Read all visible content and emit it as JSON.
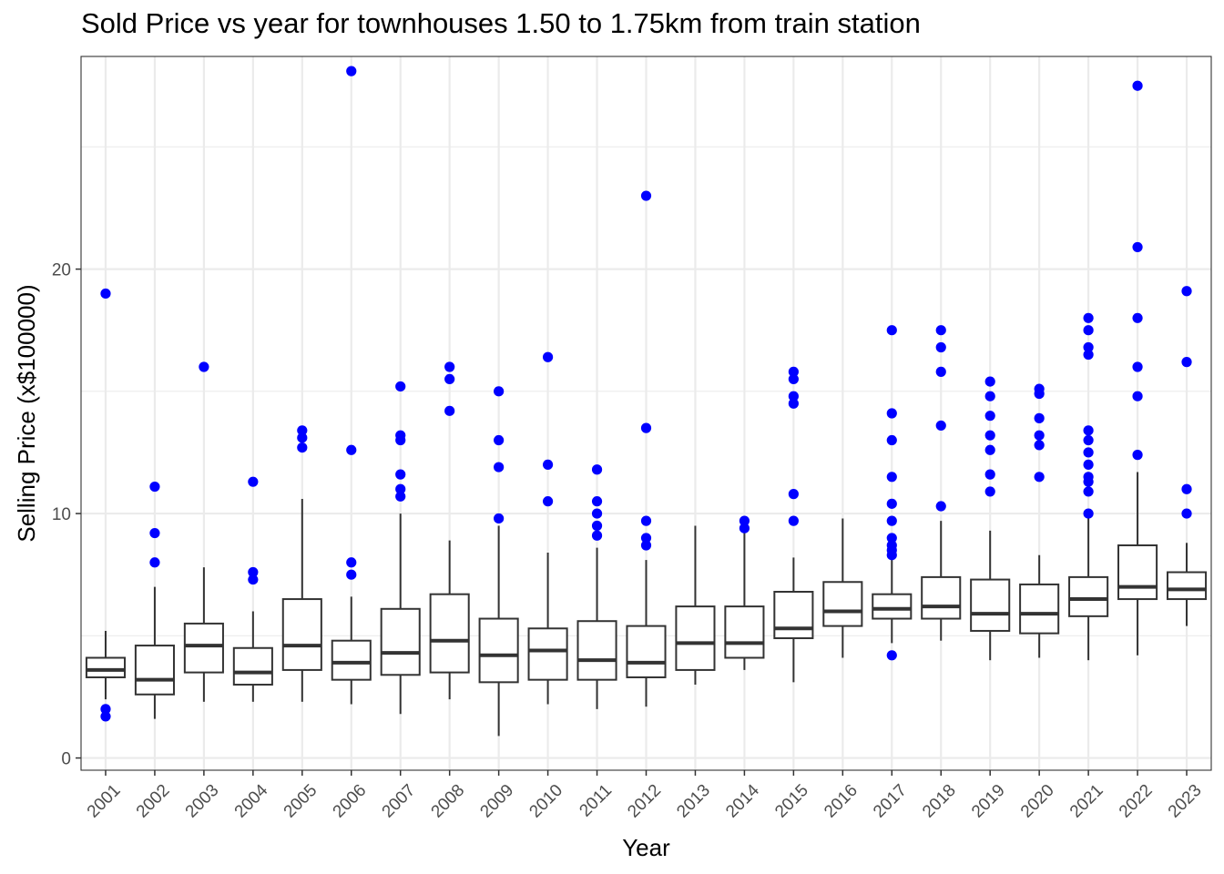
{
  "chart_data": {
    "type": "boxplot",
    "title": "Sold Price vs year for townhouses 1.50 to 1.75km from train station",
    "xlabel": "Year",
    "ylabel": "Selling Price (x$100000)",
    "ylim": [
      -0.5,
      28.7
    ],
    "y_ticks": [
      0,
      10,
      20
    ],
    "grid": true,
    "outlier_color": "#0000ff",
    "box_color": "#333333",
    "categories": [
      "2001",
      "2002",
      "2003",
      "2004",
      "2005",
      "2006",
      "2007",
      "2008",
      "2009",
      "2010",
      "2011",
      "2012",
      "2013",
      "2014",
      "2015",
      "2016",
      "2017",
      "2018",
      "2019",
      "2020",
      "2021",
      "2022",
      "2023"
    ],
    "boxes": [
      {
        "year": "2001",
        "lower": 2.4,
        "q1": 3.3,
        "median": 3.6,
        "q3": 4.1,
        "upper": 5.2,
        "outliers": [
          19.0,
          2.0,
          1.7
        ]
      },
      {
        "year": "2002",
        "lower": 1.6,
        "q1": 2.6,
        "median": 3.2,
        "q3": 4.6,
        "upper": 7.0,
        "outliers": [
          11.1,
          9.2,
          8.0
        ]
      },
      {
        "year": "2003",
        "lower": 2.3,
        "q1": 3.5,
        "median": 4.6,
        "q3": 5.5,
        "upper": 7.8,
        "outliers": [
          16.0
        ]
      },
      {
        "year": "2004",
        "lower": 2.3,
        "q1": 3.0,
        "median": 3.5,
        "q3": 4.5,
        "upper": 6.0,
        "outliers": [
          11.3,
          7.6,
          7.3
        ]
      },
      {
        "year": "2005",
        "lower": 2.3,
        "q1": 3.6,
        "median": 4.6,
        "q3": 6.5,
        "upper": 10.6,
        "outliers": [
          13.4,
          13.1,
          12.7
        ]
      },
      {
        "year": "2006",
        "lower": 2.2,
        "q1": 3.2,
        "median": 3.9,
        "q3": 4.8,
        "upper": 6.6,
        "outliers": [
          28.1,
          12.6,
          8.0,
          7.5
        ]
      },
      {
        "year": "2007",
        "lower": 1.8,
        "q1": 3.4,
        "median": 4.3,
        "q3": 6.1,
        "upper": 10.0,
        "outliers": [
          15.2,
          13.2,
          13.0,
          11.6,
          11.0,
          10.7
        ]
      },
      {
        "year": "2008",
        "lower": 2.4,
        "q1": 3.5,
        "median": 4.8,
        "q3": 6.7,
        "upper": 8.9,
        "outliers": [
          16.0,
          15.5,
          14.2
        ]
      },
      {
        "year": "2009",
        "lower": 0.9,
        "q1": 3.1,
        "median": 4.2,
        "q3": 5.7,
        "upper": 9.5,
        "outliers": [
          15.0,
          13.0,
          11.9,
          9.8
        ]
      },
      {
        "year": "2010",
        "lower": 2.2,
        "q1": 3.2,
        "median": 4.4,
        "q3": 5.3,
        "upper": 8.4,
        "outliers": [
          16.4,
          12.0,
          10.5
        ]
      },
      {
        "year": "2011",
        "lower": 2.0,
        "q1": 3.2,
        "median": 4.0,
        "q3": 5.6,
        "upper": 8.6,
        "outliers": [
          11.8,
          10.5,
          10.0,
          9.5,
          9.1
        ]
      },
      {
        "year": "2012",
        "lower": 2.1,
        "q1": 3.3,
        "median": 3.9,
        "q3": 5.4,
        "upper": 8.1,
        "outliers": [
          23.0,
          13.5,
          9.7,
          9.0,
          8.7
        ]
      },
      {
        "year": "2013",
        "lower": 3.0,
        "q1": 3.6,
        "median": 4.7,
        "q3": 6.2,
        "upper": 9.5,
        "outliers": []
      },
      {
        "year": "2014",
        "lower": 3.6,
        "q1": 4.1,
        "median": 4.7,
        "q3": 6.2,
        "upper": 9.2,
        "outliers": [
          9.7,
          9.4
        ]
      },
      {
        "year": "2015",
        "lower": 3.1,
        "q1": 4.9,
        "median": 5.3,
        "q3": 6.8,
        "upper": 8.2,
        "outliers": [
          15.8,
          15.5,
          14.8,
          14.5,
          10.8,
          9.7
        ]
      },
      {
        "year": "2016",
        "lower": 4.1,
        "q1": 5.4,
        "median": 6.0,
        "q3": 7.2,
        "upper": 9.8,
        "outliers": []
      },
      {
        "year": "2017",
        "lower": 4.7,
        "q1": 5.7,
        "median": 6.1,
        "q3": 6.7,
        "upper": 8.2,
        "outliers": [
          17.5,
          14.1,
          13.0,
          11.5,
          10.4,
          9.7,
          9.0,
          8.7,
          8.5,
          8.3,
          4.2
        ]
      },
      {
        "year": "2018",
        "lower": 4.8,
        "q1": 5.7,
        "median": 6.2,
        "q3": 7.4,
        "upper": 9.7,
        "outliers": [
          17.5,
          16.8,
          15.8,
          13.6,
          10.3
        ]
      },
      {
        "year": "2019",
        "lower": 4.0,
        "q1": 5.2,
        "median": 5.9,
        "q3": 7.3,
        "upper": 9.3,
        "outliers": [
          15.4,
          14.8,
          14.0,
          13.2,
          12.6,
          11.6,
          10.9
        ]
      },
      {
        "year": "2020",
        "lower": 4.1,
        "q1": 5.1,
        "median": 5.9,
        "q3": 7.1,
        "upper": 8.3,
        "outliers": [
          15.1,
          14.9,
          13.9,
          13.2,
          12.8,
          11.5
        ]
      },
      {
        "year": "2021",
        "lower": 4.0,
        "q1": 5.8,
        "median": 6.5,
        "q3": 7.4,
        "upper": 9.9,
        "outliers": [
          18.0,
          17.5,
          16.8,
          16.5,
          13.4,
          13.0,
          12.5,
          12.0,
          11.5,
          11.3,
          10.9,
          10.0
        ]
      },
      {
        "year": "2022",
        "lower": 4.2,
        "q1": 6.5,
        "median": 7.0,
        "q3": 8.7,
        "upper": 11.7,
        "outliers": [
          27.5,
          20.9,
          18.0,
          16.0,
          14.8,
          12.4
        ]
      },
      {
        "year": "2023",
        "lower": 5.4,
        "q1": 6.5,
        "median": 6.9,
        "q3": 7.6,
        "upper": 8.8,
        "outliers": [
          19.1,
          16.2,
          11.0,
          10.0
        ]
      }
    ]
  }
}
